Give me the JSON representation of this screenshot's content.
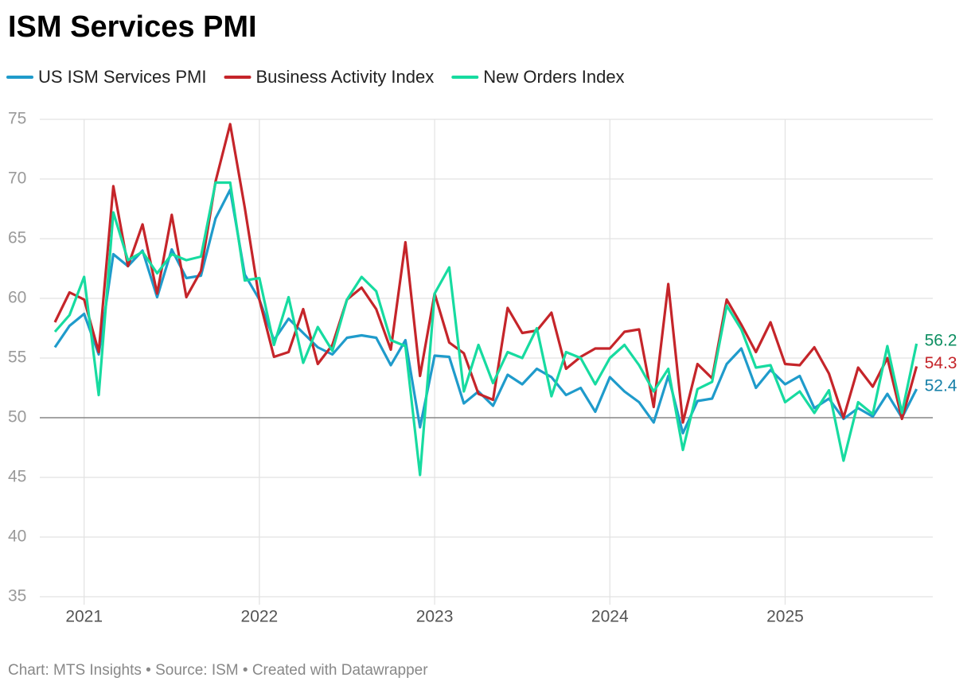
{
  "chart_data": {
    "type": "line",
    "title": "ISM Services PMI",
    "source": "Chart: MTS Insights • Source: ISM • Created with Datawrapper",
    "x": [
      "2020-11",
      "2020-12",
      "2021-01",
      "2021-02",
      "2021-03",
      "2021-04",
      "2021-05",
      "2021-06",
      "2021-07",
      "2021-08",
      "2021-09",
      "2021-10",
      "2021-11",
      "2021-12",
      "2022-01",
      "2022-02",
      "2022-03",
      "2022-04",
      "2022-05",
      "2022-06",
      "2022-07",
      "2022-08",
      "2022-09",
      "2022-10",
      "2022-11",
      "2022-12",
      "2023-01",
      "2023-02",
      "2023-03",
      "2023-04",
      "2023-05",
      "2023-06",
      "2023-07",
      "2023-08",
      "2023-09",
      "2023-10",
      "2023-11",
      "2023-12",
      "2024-01",
      "2024-02",
      "2024-03",
      "2024-04",
      "2024-05",
      "2024-06",
      "2024-07",
      "2024-08",
      "2024-09",
      "2024-10",
      "2024-11",
      "2024-12",
      "2025-01",
      "2025-02",
      "2025-03",
      "2025-04",
      "2025-05",
      "2025-06",
      "2025-07",
      "2025-08",
      "2025-09",
      "2025-10"
    ],
    "series": [
      {
        "name": "US ISM Services PMI",
        "color": "#1f9bcb",
        "label_color": "#1780a8",
        "values": [
          55.9,
          57.7,
          58.7,
          55.3,
          63.7,
          62.7,
          64.0,
          60.1,
          64.1,
          61.7,
          61.9,
          66.7,
          69.1,
          62.0,
          59.9,
          56.5,
          58.3,
          57.1,
          55.9,
          55.3,
          56.7,
          56.9,
          56.7,
          54.4,
          56.5,
          49.2,
          55.2,
          55.1,
          51.2,
          52.2,
          51.0,
          53.6,
          52.8,
          54.1,
          53.4,
          51.9,
          52.5,
          50.5,
          53.4,
          52.2,
          51.3,
          49.6,
          53.5,
          48.7,
          51.4,
          51.6,
          54.5,
          55.8,
          52.5,
          54.0,
          52.8,
          53.5,
          50.8,
          51.6,
          49.9,
          50.8,
          50.1,
          52.0,
          50.0,
          52.4
        ]
      },
      {
        "name": "Business Activity Index",
        "color": "#c5252a",
        "label_color": "#c5252a",
        "values": [
          58.0,
          60.5,
          59.9,
          55.5,
          69.4,
          62.7,
          66.2,
          60.4,
          67.0,
          60.1,
          62.3,
          69.8,
          74.6,
          67.6,
          59.9,
          55.1,
          55.5,
          59.1,
          54.5,
          56.1,
          59.9,
          60.9,
          59.1,
          55.7,
          64.7,
          53.5,
          60.4,
          56.3,
          55.4,
          52.0,
          51.5,
          59.2,
          57.1,
          57.3,
          58.8,
          54.1,
          55.1,
          55.8,
          55.8,
          57.2,
          57.4,
          50.9,
          61.2,
          49.6,
          54.5,
          53.3,
          59.9,
          57.8,
          55.5,
          58.0,
          54.5,
          54.4,
          55.9,
          53.7,
          50.0,
          54.2,
          52.6,
          55.0,
          49.9,
          54.3
        ]
      },
      {
        "name": "New Orders Index",
        "color": "#17dba0",
        "label_color": "#0e8f62",
        "values": [
          57.2,
          58.6,
          61.8,
          51.9,
          67.2,
          63.2,
          63.9,
          62.1,
          63.7,
          63.2,
          63.5,
          69.7,
          69.7,
          61.5,
          61.7,
          56.1,
          60.1,
          54.6,
          57.6,
          55.6,
          59.9,
          61.8,
          60.6,
          56.5,
          56.0,
          45.2,
          60.4,
          62.6,
          52.2,
          56.1,
          52.9,
          55.5,
          55.0,
          57.5,
          51.8,
          55.5,
          55.0,
          52.8,
          55.0,
          56.1,
          54.4,
          52.2,
          54.1,
          47.3,
          52.4,
          53.0,
          59.4,
          57.4,
          54.2,
          54.4,
          51.3,
          52.2,
          50.4,
          52.3,
          46.4,
          51.3,
          50.3,
          56.0,
          50.4,
          56.2
        ]
      }
    ],
    "ylim": [
      35,
      75
    ],
    "yticks": [
      35,
      40,
      45,
      50,
      55,
      60,
      65,
      70,
      75
    ],
    "xticks": [
      {
        "value": "2021-01",
        "label": "2021"
      },
      {
        "value": "2022-01",
        "label": "2022"
      },
      {
        "value": "2023-01",
        "label": "2023"
      },
      {
        "value": "2024-01",
        "label": "2024"
      },
      {
        "value": "2025-01",
        "label": "2025"
      }
    ],
    "reference_line": 50,
    "grid": true,
    "legend": "top"
  }
}
